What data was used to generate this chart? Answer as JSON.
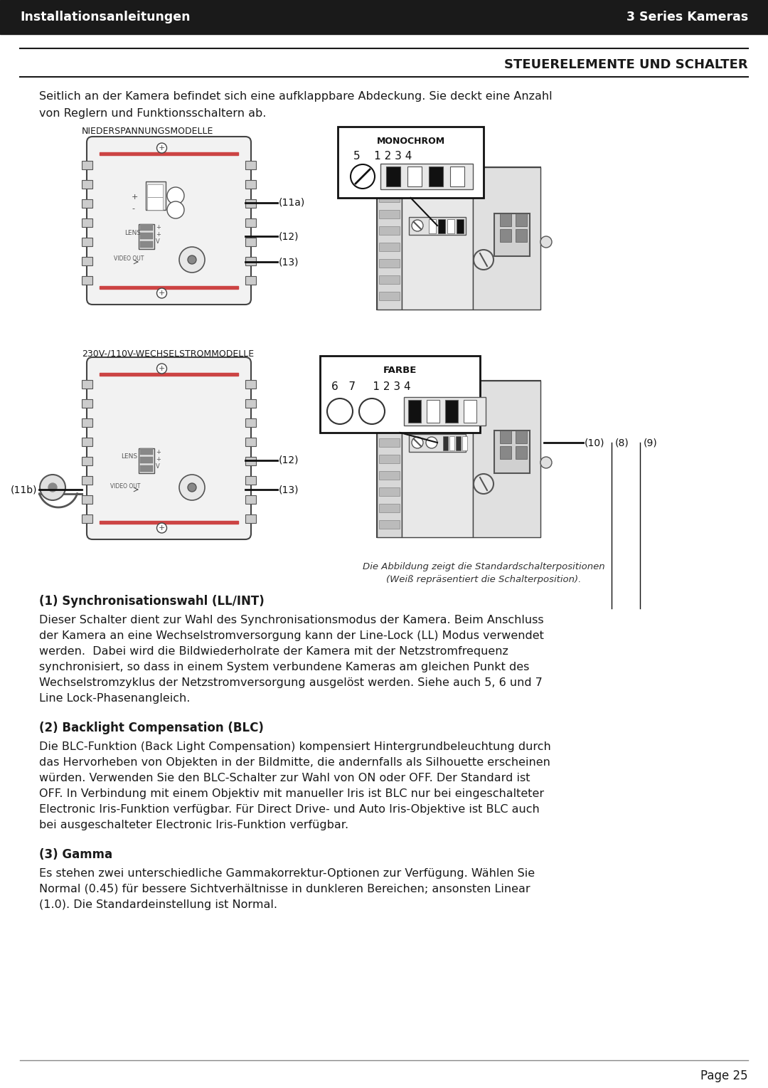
{
  "header_left": "Installationsanleitungen",
  "header_right": "3 Series Kameras",
  "header_bg": "#1a1a1a",
  "header_text_color": "#ffffff",
  "section_title": "STEUERELEMENTE UND SCHALTER",
  "intro_line1": "Seitlich an der Kamera befindet sich eine aufklappbare Abdeckung. Sie deckt eine Anzahl",
  "intro_line2": "von Reglern und Funktionsschaltern ab.",
  "caption_line1": "Die Abbildung zeigt die Standardschalterpositionen",
  "caption_line2": "(Weiß repräsentiert die Schalterposition).",
  "section1_title": "(1) Synchronisationswahl (LL/INT)",
  "section2_title": "(2) Backlight Compensation (BLC)",
  "section3_title": "(3) Gamma",
  "page_number": "Page 25",
  "bg_color": "#ffffff",
  "text_color": "#1a1a1a",
  "label_niederspannung": "NIEDERSPANNUNGSMODELLE",
  "label_230v": "230V-/110V-WECHSELSTROMMODELLE",
  "label_monochrom": "MONOCHROM",
  "label_farbe": "FARBE",
  "label_11a": "(11a)",
  "label_11b": "(11b)",
  "label_12a": "(12)",
  "label_13a": "(13)",
  "label_12b": "(12)",
  "label_13b": "(13)",
  "label_10": "(10)",
  "label_8": "(8)",
  "label_9": "(9)"
}
